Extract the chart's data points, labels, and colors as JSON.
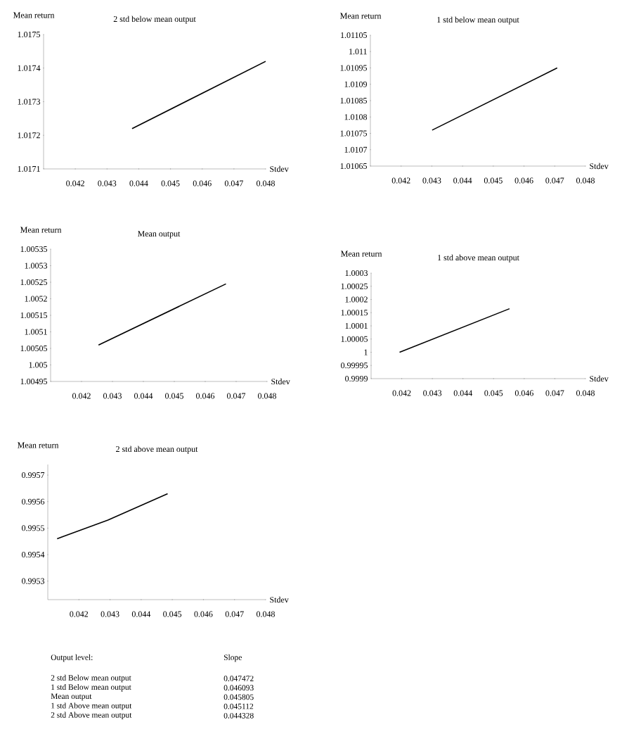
{
  "chart_data": [
    {
      "type": "line",
      "title": "2 std below mean output",
      "xlabel": "Stdev",
      "ylabel": "Mean return",
      "x": [
        0.04379,
        0.048
      ],
      "values": [
        1.01722,
        1.01742
      ],
      "color": "#000000",
      "xlim": [
        0.041,
        0.048
      ],
      "ylim": [
        1.0171,
        1.0175
      ],
      "xticks": [
        0.042,
        0.043,
        0.044,
        0.045,
        0.046,
        0.047,
        0.048
      ],
      "yticks": [
        1.0171,
        1.0172,
        1.0173,
        1.0174,
        1.0175
      ]
    },
    {
      "type": "line",
      "title": "1 std below mean output",
      "xlabel": "Stdev",
      "ylabel": "Mean return",
      "x": [
        0.04301,
        0.04708
      ],
      "values": [
        1.01076,
        1.01095
      ],
      "color": "#000000",
      "xlim": [
        0.041,
        0.048
      ],
      "ylim": [
        1.01065,
        1.01105
      ],
      "xticks": [
        0.042,
        0.043,
        0.044,
        0.045,
        0.046,
        0.047,
        0.048
      ],
      "yticks": [
        1.01065,
        1.0107,
        1.01075,
        1.0108,
        1.01085,
        1.0109,
        1.01095,
        1.011,
        1.01105
      ]
    },
    {
      "type": "line",
      "title": "Mean output",
      "xlabel": "Stdev",
      "ylabel": "Mean return",
      "x": [
        0.04255,
        0.04667
      ],
      "values": [
        1.00506,
        1.005245
      ],
      "color": "#000000",
      "xlim": [
        0.041,
        0.048
      ],
      "ylim": [
        1.00495,
        1.00535
      ],
      "xticks": [
        0.042,
        0.043,
        0.044,
        0.045,
        0.046,
        0.047,
        0.048
      ],
      "yticks": [
        1.00495,
        1.005,
        1.00505,
        1.0051,
        1.00515,
        1.0052,
        1.00525,
        1.0053,
        1.00535
      ]
    },
    {
      "type": "line",
      "title": "1 std above mean output",
      "xlabel": "Stdev",
      "ylabel": "Mean return",
      "x": [
        0.04193,
        0.04552
      ],
      "values": [
        1.0,
        1.000165
      ],
      "color": "#000000",
      "xlim": [
        0.041,
        0.048
      ],
      "ylim": [
        0.9999,
        1.0003
      ],
      "xticks": [
        0.042,
        0.043,
        0.044,
        0.045,
        0.046,
        0.047,
        0.048
      ],
      "yticks": [
        0.9999,
        0.99995,
        1,
        1.00005,
        1.0001,
        1.00015,
        1.0002,
        1.00025,
        1.0003
      ]
    },
    {
      "type": "line",
      "title": "2 std above mean output",
      "xlabel": "Stdev",
      "ylabel": "Mean return",
      "x": [
        0.0413,
        0.04293,
        0.04485
      ],
      "values": [
        0.99546,
        0.99553,
        0.99563
      ],
      "color": "#000000",
      "xlim": [
        0.041,
        0.048
      ],
      "ylim": [
        0.99523,
        0.99574
      ],
      "xticks": [
        0.042,
        0.043,
        0.044,
        0.045,
        0.046,
        0.047,
        0.048
      ],
      "yticks": [
        0.9953,
        0.9954,
        0.9955,
        0.9956,
        0.9957
      ]
    },
    {
      "type": "other",
      "annotations": [
        "Output level:",
        "Slope",
        "2 std Below mean output",
        "0.047472",
        "1 std Below mean output",
        "0.046093",
        "Mean output",
        "0.045805",
        "1 std Above mean output",
        "0.045112",
        "2 std Above mean output",
        "0.044328"
      ]
    }
  ]
}
